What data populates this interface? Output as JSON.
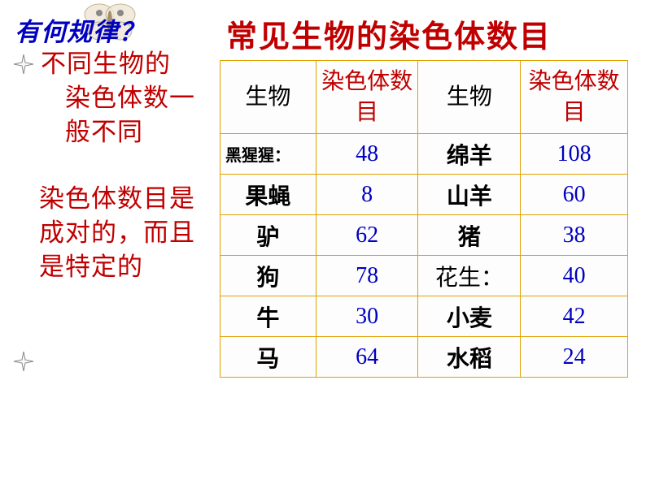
{
  "heading": "有何规律？",
  "paragraphs": {
    "p1_line1": "不同生物的",
    "p1_line2": "染色体数一",
    "p1_line3": "般不同",
    "p2": "染色体数目是成对的，而且是特定的"
  },
  "title": "常见生物的染色体数目",
  "table": {
    "headers": {
      "col1": "生物",
      "col2": "染色体数目",
      "col3": "生物",
      "col4": "染色体数目"
    },
    "rows": [
      {
        "n1": "黑猩猩：",
        "v1": "48",
        "n2": "绵羊",
        "v2": "108",
        "n1_small": true
      },
      {
        "n1": "果蝇",
        "v1": "8",
        "n2": "山羊",
        "v2": "60"
      },
      {
        "n1": "驴",
        "v1": "62",
        "n2": "猪",
        "v2": "38"
      },
      {
        "n1": "狗",
        "v1": "78",
        "n2": "花生：",
        "v2": "40",
        "n2_normal": true
      },
      {
        "n1": "牛",
        "v1": "30",
        "n2": "小麦",
        "v2": "42"
      },
      {
        "n1": "马",
        "v1": "64",
        "n2": "水稻",
        "v2": "24"
      }
    ]
  },
  "colors": {
    "heading": "#0000c0",
    "red_text": "#c00000",
    "val_text": "#0000c0",
    "border": "#e0a000"
  }
}
